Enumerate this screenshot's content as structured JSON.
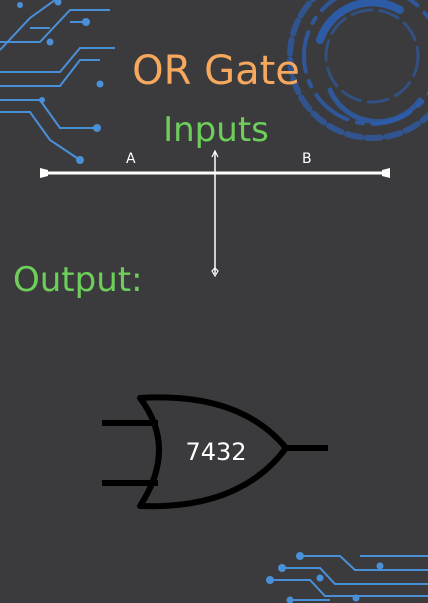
{
  "page": {
    "title": "OR Gate",
    "inputs_heading": "Inputs",
    "output_heading": "Output:"
  },
  "wires": {
    "input_a_label": "A",
    "input_b_label": "B"
  },
  "gate": {
    "chip_label": "7432"
  },
  "colors": {
    "background": "#3b3b3d",
    "title": "#f5a85e",
    "heading": "#6dcf5a",
    "circuit_blue": "#4a90d9",
    "wire": "#ffffff",
    "gate_outline": "#000000"
  },
  "icons": [
    "circuit-trace-icon",
    "circuit-ring-icon",
    "or-gate-icon",
    "circuit-trace-icon"
  ]
}
